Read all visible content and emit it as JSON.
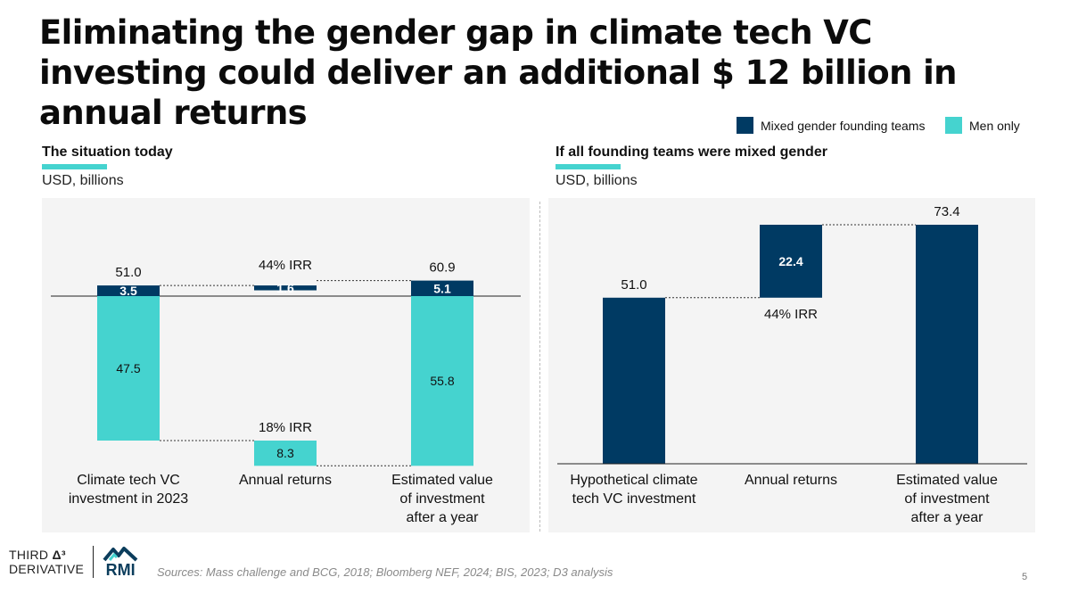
{
  "title": "Eliminating the gender gap in climate tech VC investing could deliver an additional $ 12 billion in annual returns",
  "colors": {
    "mixed": "#003a63",
    "men": "#45d3cf",
    "panel_bg": "#f4f4f4",
    "accent_underline": "#45d3cf"
  },
  "legend": {
    "mixed_label": "Mixed gender founding teams",
    "men_label": "Men only"
  },
  "left": {
    "heading": "The situation today",
    "unit": "USD, billions"
  },
  "right": {
    "heading": "If all founding teams were mixed gender",
    "unit": "USD, billions"
  },
  "chart_data": [
    {
      "type": "bar",
      "subtitle": "The situation today",
      "ylabel": "USD, billions",
      "categories": [
        "Climate tech VC investment in 2023",
        "Annual returns",
        "Estimated value of investment after a year"
      ],
      "category_lines": [
        [
          "Climate tech VC",
          "investment in 2023"
        ],
        [
          "Annual returns"
        ],
        [
          "Estimated value",
          "of investment",
          "after a year"
        ]
      ],
      "series": [
        {
          "name": "Mixed gender founding teams",
          "values": [
            3.5,
            1.6,
            5.1
          ]
        },
        {
          "name": "Men only",
          "values": [
            47.5,
            8.3,
            55.8
          ]
        }
      ],
      "totals": [
        "51.0",
        "",
        "60.9"
      ],
      "annotations": [
        "44% IRR",
        "18% IRR"
      ]
    },
    {
      "type": "bar",
      "subtitle": "If all founding teams were mixed gender",
      "ylabel": "USD, billions",
      "categories": [
        "Hypothetical climate tech VC investment",
        "Annual returns",
        "Estimated value of investment after a year"
      ],
      "category_lines": [
        [
          "Hypothetical climate",
          "tech VC investment"
        ],
        [
          "Annual returns"
        ],
        [
          "Estimated value",
          "of investment",
          "after a year"
        ]
      ],
      "series": [
        {
          "name": "Mixed gender founding teams",
          "values": [
            51.0,
            22.4,
            73.4
          ]
        }
      ],
      "totals": [
        "51.0",
        "",
        "73.4"
      ],
      "annotations": [
        "44% IRR"
      ]
    }
  ],
  "footer": {
    "brand_third_line1": "THIRD",
    "brand_third_line2": "DERIVATIVE",
    "brand_d3": "Δ³",
    "brand_rmi": "RMI",
    "sources": "Sources: Mass challenge and BCG, 2018; Bloomberg NEF, 2024; BIS, 2023; D3 analysis",
    "page": "5"
  }
}
